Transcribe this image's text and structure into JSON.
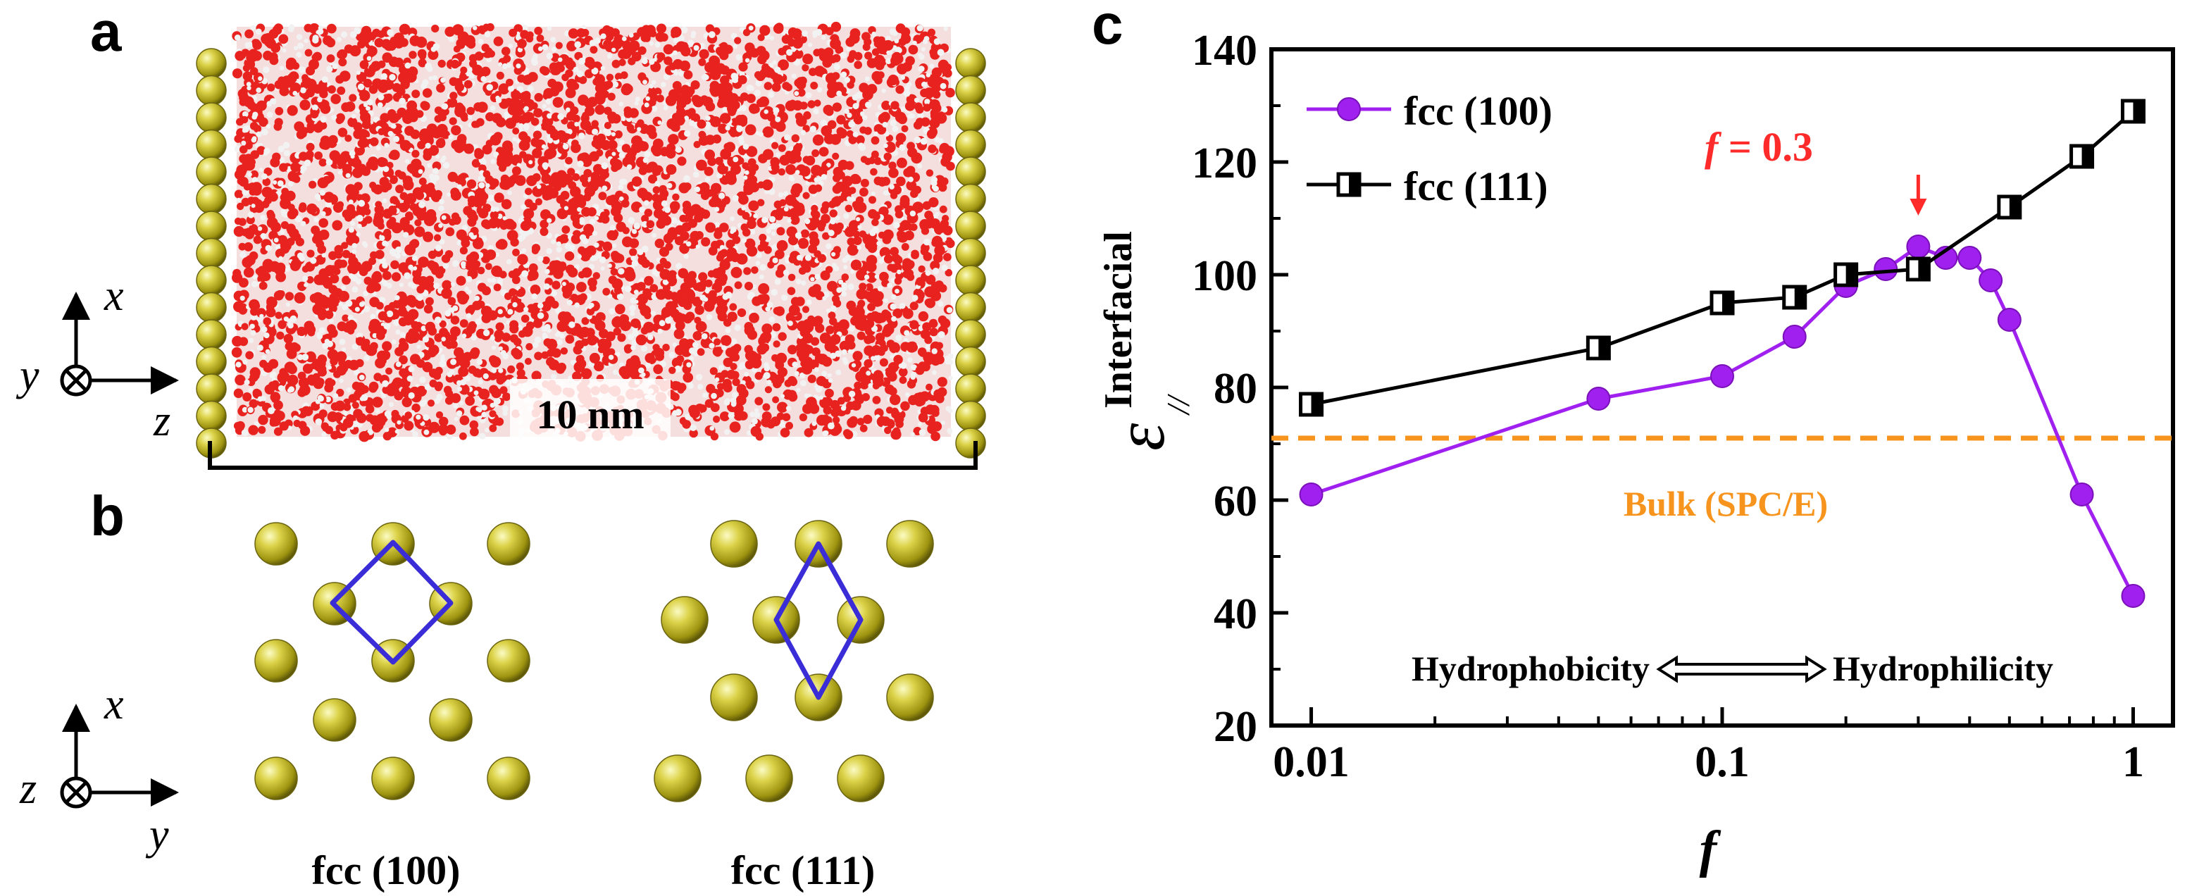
{
  "panels": {
    "a": {
      "label": "a",
      "scale_bar_label": "10 nm",
      "axes": {
        "up": "x",
        "into": "y",
        "right": "z"
      }
    },
    "b": {
      "label": "b",
      "left_caption": "fcc (100)",
      "right_caption": "fcc (111)",
      "axes": {
        "up": "x",
        "into": "z",
        "right": "y"
      }
    },
    "c": {
      "label": "c"
    }
  },
  "colors": {
    "fcc100": "#a020f0",
    "fcc111": "#000000",
    "bulk": "#f7941d",
    "annotation": "#ff2a2a",
    "atom": "#c8c020",
    "oxygen": "#e8231f",
    "unit_cell": "#3a2dd8"
  },
  "chart_data": {
    "type": "line",
    "xlabel": "f",
    "ylabel": "ε//Interfacial",
    "ylabel_base": "ε",
    "ylabel_sub": "//",
    "ylabel_sup": "Interfacial",
    "xscale": "log",
    "xlim": [
      0.008,
      1.25
    ],
    "ylim": [
      20,
      140
    ],
    "xticks": [
      0.01,
      0.1,
      1
    ],
    "xtick_labels": [
      "0.01",
      "0.1",
      "1"
    ],
    "yticks": [
      20,
      40,
      60,
      80,
      100,
      120,
      140
    ],
    "ytick_labels": [
      "20",
      "40",
      "60",
      "80",
      "100",
      "120",
      "140"
    ],
    "legend_position": "top-left",
    "series": [
      {
        "name": "fcc (100)",
        "marker": "circle",
        "color": "#a020f0",
        "x": [
          0.01,
          0.05,
          0.1,
          0.15,
          0.2,
          0.25,
          0.3,
          0.35,
          0.4,
          0.45,
          0.5,
          0.75,
          1.0
        ],
        "y": [
          61,
          78,
          82,
          89,
          98,
          101,
          105,
          103,
          103,
          99,
          92,
          61,
          43
        ]
      },
      {
        "name": "fcc (111)",
        "marker": "half-filled-square",
        "color": "#000000",
        "x": [
          0.01,
          0.05,
          0.1,
          0.15,
          0.2,
          0.3,
          0.5,
          0.75,
          1.0
        ],
        "y": [
          77,
          87,
          95,
          96,
          100,
          101,
          112,
          121,
          129
        ]
      }
    ],
    "reference_line": {
      "label": "Bulk (SPC/E)",
      "y": 71,
      "color": "#f7941d"
    },
    "annotations": [
      {
        "text_f": "f",
        "text_value": "= 0.3",
        "x": 0.3
      },
      {
        "left": "Hydrophobicity",
        "right": "Hydrophilicity"
      }
    ]
  }
}
